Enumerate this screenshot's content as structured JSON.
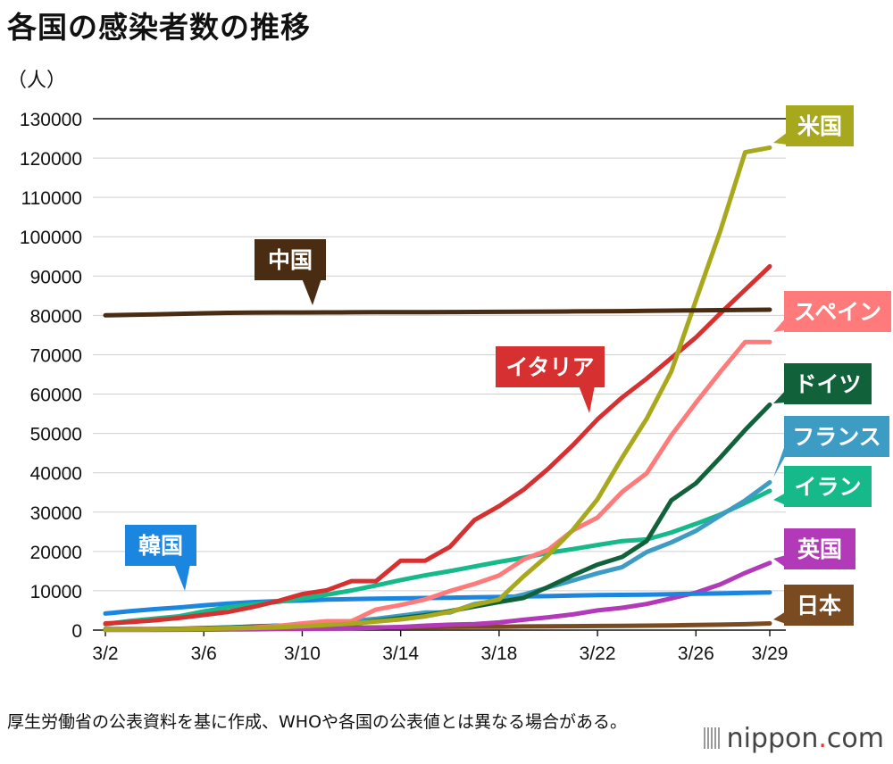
{
  "title": "各国の感染者数の推移",
  "unit": "（人）",
  "note": "厚生労働省の公表資料を基に作成、WHOや各国の公表値とは異なる場合がある。",
  "brand": {
    "name": "nippon",
    "dot": ".",
    "suffix": "com"
  },
  "chart_data": {
    "type": "line",
    "x": [
      "3/2",
      "3/3",
      "3/4",
      "3/5",
      "3/6",
      "3/7",
      "3/8",
      "3/9",
      "3/10",
      "3/11",
      "3/12",
      "3/13",
      "3/14",
      "3/15",
      "3/16",
      "3/17",
      "3/18",
      "3/19",
      "3/20",
      "3/21",
      "3/22",
      "3/23",
      "3/24",
      "3/25",
      "3/26",
      "3/27",
      "3/28",
      "3/29"
    ],
    "xticks": [
      "3/2",
      "3/6",
      "3/10",
      "3/14",
      "3/18",
      "3/22",
      "3/26",
      "3/29"
    ],
    "ylim": [
      0,
      130000
    ],
    "yticks": [
      0,
      10000,
      20000,
      30000,
      40000,
      50000,
      60000,
      70000,
      80000,
      90000,
      100000,
      110000,
      120000,
      130000
    ],
    "series": [
      {
        "name": "中国",
        "color": "#4a2c12",
        "values": [
          80026,
          80151,
          80270,
          80409,
          80552,
          80651,
          80695,
          80735,
          80754,
          80778,
          80793,
          80813,
          80824,
          80844,
          80860,
          80881,
          80894,
          80928,
          80967,
          81008,
          81054,
          81093,
          81171,
          81218,
          81285,
          81340,
          81394,
          81439
        ]
      },
      {
        "name": "米国",
        "color": "#a8a81c",
        "values": [
          100,
          124,
          158,
          221,
          319,
          435,
          541,
          704,
          994,
          1301,
          1630,
          2183,
          2726,
          3499,
          4632,
          6421,
          7786,
          13680,
          19101,
          25493,
          33276,
          43847,
          53740,
          65778,
          83836,
          101657,
          121478,
          122653
        ]
      },
      {
        "name": "スペイン",
        "color": "#ff7b7b",
        "values": [
          120,
          165,
          222,
          259,
          400,
          500,
          673,
          1073,
          1695,
          2277,
          2277,
          5232,
          6391,
          7798,
          9942,
          11748,
          13910,
          17963,
          20410,
          25374,
          28603,
          35136,
          39885,
          49515,
          57786,
          65719,
          73235,
          73235
        ]
      },
      {
        "name": "イタリア",
        "color": "#d63031",
        "values": [
          1694,
          2036,
          2502,
          3089,
          3858,
          4636,
          5883,
          7375,
          9172,
          10149,
          12462,
          12462,
          17660,
          17660,
          21157,
          27980,
          31506,
          35713,
          41035,
          47021,
          53578,
          59138,
          63927,
          69176,
          74386,
          80589,
          86498,
          92472
        ]
      },
      {
        "name": "ドイツ",
        "color": "#11623a",
        "values": [
          150,
          188,
          240,
          349,
          534,
          684,
          847,
          1112,
          1139,
          1296,
          1567,
          2369,
          3062,
          3795,
          4838,
          6012,
          7156,
          8198,
          10999,
          13957,
          16662,
          18610,
          22672,
          32991,
          37323,
          43938,
          50871,
          57298
        ]
      },
      {
        "name": "フランス",
        "color": "#3d9cc3",
        "values": [
          130,
          191,
          204,
          285,
          377,
          653,
          949,
          1126,
          1209,
          1784,
          2281,
          2876,
          3661,
          4469,
          4499,
          6633,
          7652,
          9043,
          10871,
          12612,
          14459,
          16018,
          19856,
          22304,
          25233,
          29155,
          32964,
          37575
        ]
      },
      {
        "name": "イラン",
        "color": "#16b98a",
        "values": [
          1501,
          2336,
          2922,
          3513,
          4747,
          5823,
          6566,
          7161,
          8042,
          9000,
          10075,
          11364,
          12729,
          13938,
          14991,
          16169,
          17361,
          18407,
          19644,
          20610,
          21638,
          22638,
          23049,
          24811,
          27017,
          29406,
          32332,
          35408
        ]
      },
      {
        "name": "英国",
        "color": "#b23ab8",
        "values": [
          36,
          40,
          51,
          85,
          115,
          163,
          206,
          273,
          321,
          373,
          456,
          590,
          798,
          1140,
          1391,
          1543,
          1950,
          2626,
          3269,
          3983,
          5018,
          5683,
          6650,
          8077,
          9529,
          11658,
          14543,
          17089
        ]
      },
      {
        "name": "韓国",
        "color": "#1a86e0",
        "values": [
          4212,
          4812,
          5328,
          5766,
          6284,
          6767,
          7134,
          7382,
          7513,
          7755,
          7869,
          7979,
          8086,
          8162,
          8236,
          8320,
          8413,
          8565,
          8652,
          8799,
          8897,
          8961,
          9037,
          9137,
          9241,
          9332,
          9478,
          9583
        ]
      },
      {
        "name": "日本",
        "color": "#7a4a20",
        "values": [
          254,
          268,
          284,
          317,
          349,
          408,
          455,
          488,
          514,
          568,
          620,
          675,
          716,
          780,
          814,
          829,
          873,
          924,
          950,
          1007,
          1054,
          1089,
          1128,
          1193,
          1291,
          1387,
          1499,
          1693
        ]
      }
    ],
    "labels": [
      {
        "series": "中国",
        "text": "中国"
      },
      {
        "series": "イタリア",
        "text": "イタリア"
      },
      {
        "series": "韓国",
        "text": "韓国"
      },
      {
        "series": "米国",
        "text": "米国"
      },
      {
        "series": "スペイン",
        "text": "スペイン"
      },
      {
        "series": "ドイツ",
        "text": "ドイツ"
      },
      {
        "series": "フランス",
        "text": "フランス"
      },
      {
        "series": "イラン",
        "text": "イラン"
      },
      {
        "series": "英国",
        "text": "英国"
      },
      {
        "series": "日本",
        "text": "日本"
      }
    ]
  }
}
